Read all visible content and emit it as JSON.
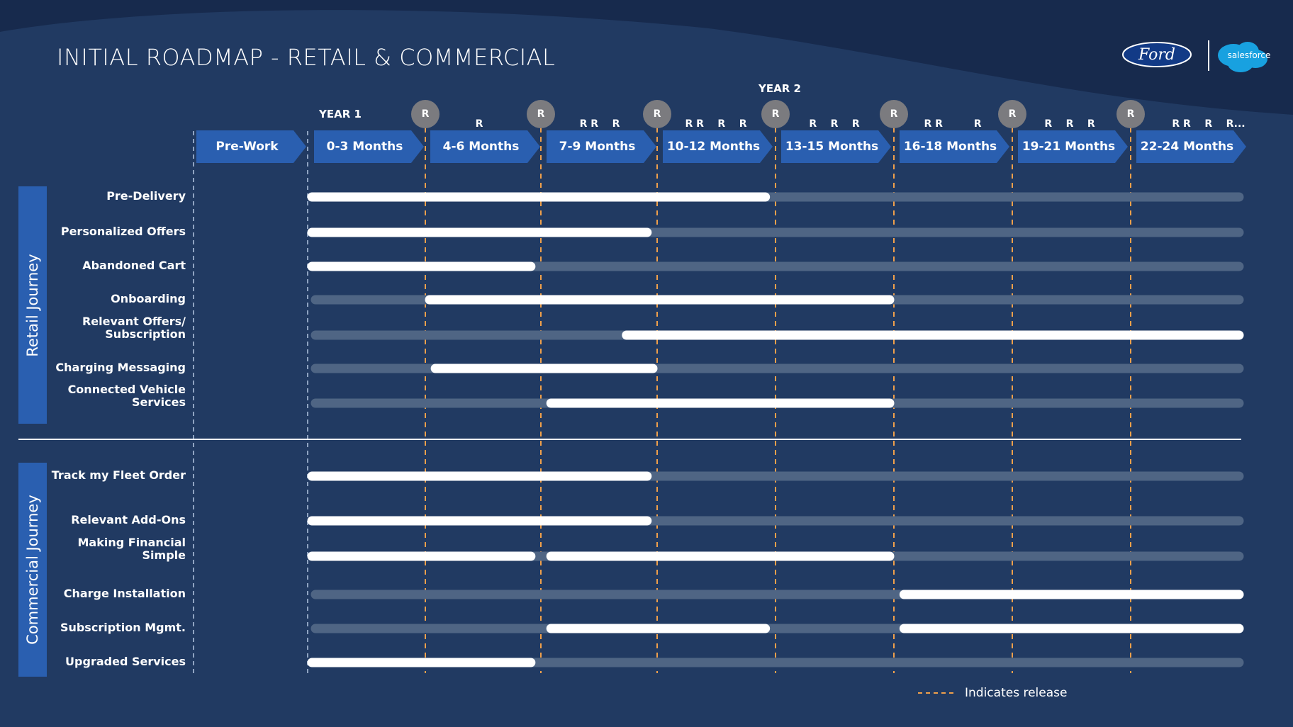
{
  "title": "INITIAL ROADMAP - RETAIL & COMMERCIAL",
  "logos": {
    "ford": "Ford",
    "salesforce": "salesforce"
  },
  "years": {
    "year1": "YEAR 1",
    "year2": "YEAR 2"
  },
  "release_marker": "R",
  "release_clusters": [
    "R",
    "R R    R",
    "R R    R    R",
    "R    R    R",
    "R R         R",
    "R    R    R",
    "R R    R    R..."
  ],
  "phases": [
    "Pre-Work",
    "0-3 Months",
    "4-6 Months",
    "7-9 Months",
    "10-12 Months",
    "13-15 Months",
    "16-18 Months",
    "19-21 Months",
    "22-24 Months"
  ],
  "sections": [
    {
      "label": "Retail Journey",
      "rows": [
        {
          "label": "Pre-Delivery",
          "bars": [
            [
              1,
              4.95
            ]
          ]
        },
        {
          "label": "Personalized Offers",
          "bars": [
            [
              1,
              3.95
            ]
          ]
        },
        {
          "label": "Abandoned Cart",
          "bars": [
            [
              1,
              2.95
            ]
          ]
        },
        {
          "label": "Onboarding",
          "bars": [
            [
              2,
              6
            ]
          ]
        },
        {
          "label": "Relevant Offers/\nSubscription",
          "bars": [
            [
              3.7,
              9
            ]
          ]
        },
        {
          "label": "Charging Messaging",
          "bars": [
            [
              2.05,
              4
            ]
          ]
        },
        {
          "label": "Connected Vehicle\nServices",
          "bars": [
            [
              3.05,
              6
            ]
          ]
        }
      ]
    },
    {
      "label": "Commercial Journey",
      "rows": [
        {
          "label": "Track my Fleet Order",
          "bars": [
            [
              1,
              3.95
            ]
          ]
        },
        {
          "label": "Relevant  Add-Ons",
          "bars": [
            [
              1,
              3.95
            ]
          ]
        },
        {
          "label": "Making Financial\nSimple",
          "bars": [
            [
              1,
              2.95
            ],
            [
              3.05,
              6
            ]
          ]
        },
        {
          "label": "Charge Installation",
          "bars": [
            [
              6.05,
              9
            ]
          ]
        },
        {
          "label": "Subscription Mgmt.",
          "bars": [
            [
              3.05,
              4.95
            ],
            [
              6.05,
              9
            ]
          ]
        },
        {
          "label": "Upgraded Services",
          "bars": [
            [
              1,
              2.95
            ]
          ]
        }
      ]
    }
  ],
  "legend": "Indicates release",
  "colors": {
    "background": "#213a62",
    "header_band": "#172a4d",
    "chevron": "#2a5fb0",
    "bar_active": "#ffffff",
    "bar_track": "#4f6584",
    "release_line": "#f0a04b",
    "release_circle": "#7b7b7f"
  }
}
